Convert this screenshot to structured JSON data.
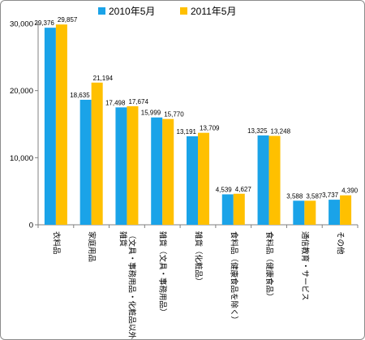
{
  "chart_data": {
    "type": "bar",
    "title": "",
    "xlabel": "",
    "ylabel": "",
    "ylim": [
      0,
      30000
    ],
    "yticks": [
      0,
      10000,
      20000,
      30000
    ],
    "ytick_labels": [
      "0",
      "10,000",
      "20,000",
      "30,000"
    ],
    "grid": false,
    "legend_position": "top",
    "categories": [
      "衣料品",
      "家庭用品",
      "雑貨（文具・事務用品・化粧品以外）",
      "雑貨（文具・事務用品）",
      "雑貨（化粧品）",
      "食料品（健康食品を除く）",
      "食料品（健康食品）",
      "通信教育・サービス",
      "その他"
    ],
    "category_lines": [
      [
        "衣料品"
      ],
      [
        "家庭用品"
      ],
      [
        "雑貨",
        "（文具・事務用品・化粧品以外）"
      ],
      [
        "雑貨（文具・事務用品）"
      ],
      [
        "雑貨（化粧品）"
      ],
      [
        "食料品（健康食品を除く）"
      ],
      [
        "食料品（健康食品）"
      ],
      [
        "通信教育・サービス"
      ],
      [
        "その他"
      ]
    ],
    "series": [
      {
        "name": "2010年5月",
        "color": "#1aa3e8",
        "values": [
          29376,
          18635,
          17498,
          15999,
          13191,
          4539,
          13325,
          3588,
          3737
        ],
        "labels": [
          "29,376",
          "18,635",
          "17,498",
          "15,999",
          "13,191",
          "4,539",
          "13,325",
          "3,588",
          "3,737"
        ]
      },
      {
        "name": "2011年5月",
        "color": "#ffc000",
        "values": [
          29857,
          21194,
          17674,
          15770,
          13709,
          4627,
          13248,
          3587,
          4390
        ],
        "labels": [
          "29,857",
          "21,194",
          "17,674",
          "15,770",
          "13,709",
          "4,627",
          "13,248",
          "3,587",
          "4,390"
        ]
      }
    ]
  }
}
